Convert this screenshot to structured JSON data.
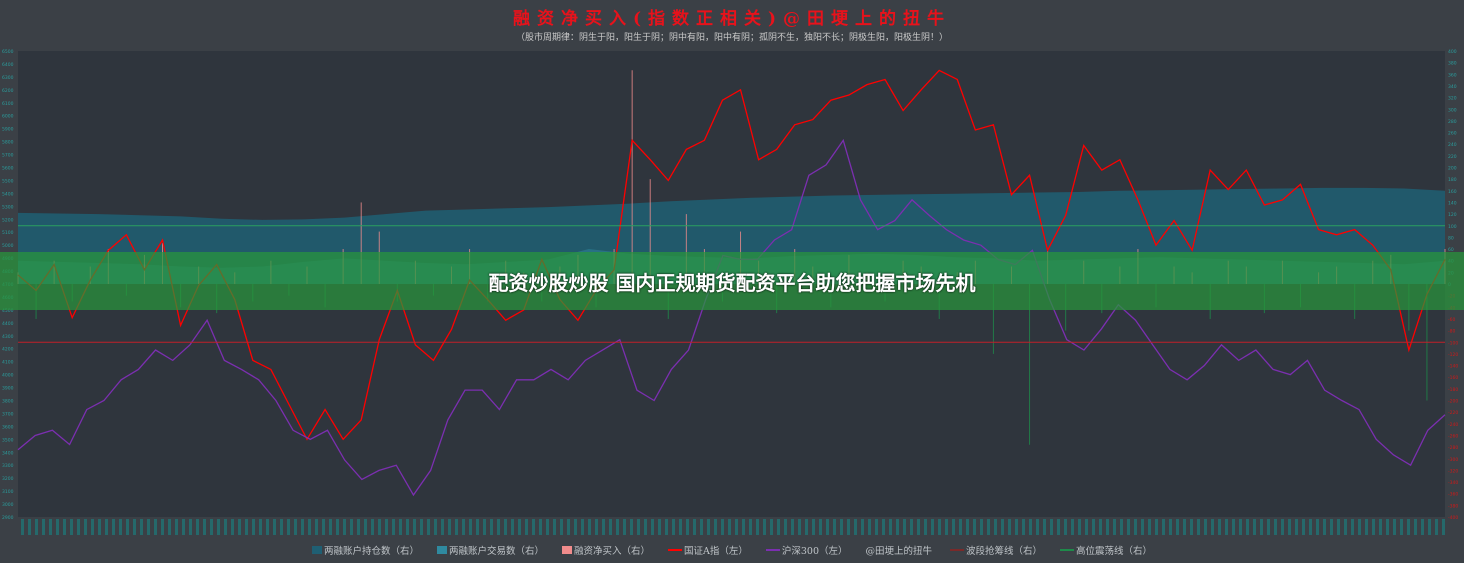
{
  "banner": {
    "text": "配资炒股炒股 国内正规期货配资平台助您把握市场先机"
  },
  "chart_data": {
    "type": "line",
    "title": "融资净买入(指数正相关)@田埂上的扭牛",
    "subtitle": "（股市周期律：阴生于阳，阳生于阴；阴中有阳，阳中有阴；孤阴不生，独阳不长；阴极生阳，阳极生阴！）",
    "left_axis": {
      "range": [
        2900,
        6500
      ],
      "step": 100,
      "color": "#2a9d9d"
    },
    "right_axis": {
      "range": [
        -400,
        400
      ],
      "step": 20,
      "positive_color": "#2a9d9d",
      "negative_color": "#d01818"
    },
    "grid": false,
    "legend_position": "bottom",
    "colors": {
      "holding": "#1f5f73",
      "trading": "#2f8aa0",
      "netbuy": "#f08c8c",
      "gz": "#ff0000",
      "hs300": "#7b2fb0",
      "band": "#7a2a2a",
      "high": "#1e8a4a"
    },
    "series": [
      {
        "name": "两融账户持仓数（右）",
        "axis": "right",
        "kind": "area",
        "values": [
          122,
          121,
          120,
          118,
          116,
          112,
          110,
          111,
          114,
          120,
          126,
          128,
          130,
          132,
          135,
          138,
          142,
          145,
          148,
          150,
          152,
          153,
          154,
          155,
          156,
          157,
          158,
          160,
          161,
          162,
          163,
          164,
          165,
          165,
          164,
          160
        ]
      },
      {
        "name": "两融账户交易数（右）",
        "axis": "right",
        "kind": "area",
        "values": [
          40,
          38,
          36,
          34,
          30,
          28,
          30,
          38,
          44,
          40,
          36,
          34,
          38,
          42,
          60,
          52,
          48,
          46,
          44,
          48,
          50,
          52,
          50,
          46,
          44,
          40,
          42,
          44,
          46,
          44,
          42,
          40,
          38,
          36,
          34,
          40
        ]
      },
      {
        "name": "融资净买入（右）",
        "axis": "right",
        "kind": "bar",
        "values": [
          20,
          -60,
          40,
          -30,
          30,
          60,
          -20,
          50,
          70,
          -40,
          30,
          -50,
          20,
          -30,
          40,
          -20,
          30,
          -40,
          60,
          140,
          90,
          -30,
          40,
          -20,
          30,
          60,
          -30,
          40,
          20,
          -30,
          30,
          50,
          -40,
          60,
          367,
          180,
          -60,
          120,
          60,
          -30,
          90,
          40,
          -50,
          60,
          30,
          -40,
          50,
          20,
          -30,
          40,
          30,
          -60,
          20,
          40,
          -120,
          30,
          -276,
          60,
          -80,
          40,
          -50,
          30,
          60,
          -40,
          30,
          20,
          -60,
          40,
          30,
          -50,
          40,
          -40,
          20,
          30,
          -60,
          40,
          50,
          -80,
          -200,
          60
        ]
      },
      {
        "name": "国证A指（左）",
        "axis": "left",
        "kind": "line",
        "values": [
          4770,
          4650,
          4850,
          4440,
          4730,
          4960,
          5080,
          4810,
          5040,
          4380,
          4690,
          4850,
          4580,
          4110,
          4040,
          3770,
          3500,
          3730,
          3500,
          3650,
          4270,
          4650,
          4230,
          4110,
          4350,
          4730,
          4580,
          4420,
          4500,
          4890,
          4580,
          4420,
          4650,
          4810,
          5810,
          5660,
          5500,
          5740,
          5810,
          6120,
          6200,
          5660,
          5740,
          5930,
          5970,
          6120,
          6160,
          6240,
          6280,
          6040,
          6200,
          6350,
          6280,
          5890,
          5930,
          5390,
          5540,
          4960,
          5230,
          5770,
          5580,
          5660,
          5350,
          5000,
          5190,
          4960,
          5580,
          5430,
          5580,
          5310,
          5350,
          5470,
          5120,
          5080,
          5120,
          5000,
          4810,
          4190,
          4620,
          4890
        ]
      },
      {
        "name": "沪深300（左）",
        "axis": "left",
        "kind": "line",
        "values": [
          3420,
          3530,
          3570,
          3460,
          3730,
          3800,
          3960,
          4040,
          4190,
          4110,
          4230,
          4420,
          4110,
          4040,
          3960,
          3800,
          3570,
          3500,
          3570,
          3340,
          3190,
          3260,
          3300,
          3070,
          3260,
          3650,
          3880,
          3880,
          3730,
          3960,
          3960,
          4040,
          3960,
          4110,
          4190,
          4270,
          3880,
          3800,
          4040,
          4190,
          4580,
          4920,
          4890,
          4890,
          5040,
          5120,
          5540,
          5620,
          5810,
          5350,
          5120,
          5190,
          5350,
          5230,
          5120,
          5040,
          5000,
          4890,
          4850,
          4960,
          4580,
          4270,
          4190,
          4350,
          4540,
          4420,
          4230,
          4040,
          3960,
          4070,
          4230,
          4110,
          4190,
          4040,
          4000,
          4110,
          3880,
          3800,
          3730,
          3500,
          3380,
          3300,
          3570,
          3690
        ]
      },
      {
        "name": "@田埂上的扭牛",
        "kind": "label"
      },
      {
        "name": "波段抢筹线（右）",
        "axis": "right",
        "kind": "hline",
        "value": -100
      },
      {
        "name": "高位震荡线（右）",
        "axis": "right",
        "kind": "hline",
        "value": 100
      }
    ]
  }
}
